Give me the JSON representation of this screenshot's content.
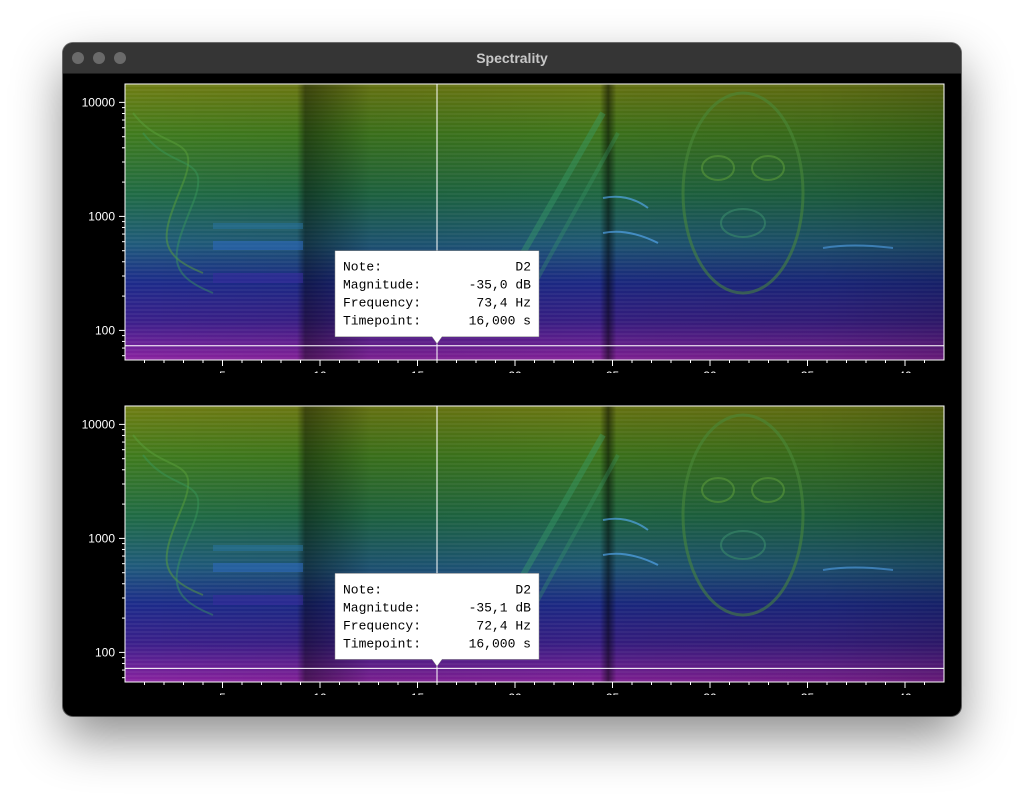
{
  "window": {
    "title": "Spectrality"
  },
  "icons": {
    "close": "close-dot-icon",
    "minimize": "minimize-dot-icon",
    "zoom": "zoom-dot-icon"
  },
  "colors": {
    "high_frequency": "#7a8a16",
    "mid_frequency": "#2a8a4a",
    "upper_low": "#2a6a9a",
    "low_frequency": "#2a2a9a",
    "bass": "#9a2aaa",
    "cursor": "#ffffff"
  },
  "axes": {
    "y_ticks": [
      {
        "value": 10000,
        "label": "10000"
      },
      {
        "value": 1000,
        "label": "1000"
      },
      {
        "value": 100,
        "label": "100"
      }
    ],
    "x_ticks": [
      {
        "value": 5,
        "label": "5"
      },
      {
        "value": 10,
        "label": "10"
      },
      {
        "value": 15,
        "label": "15"
      },
      {
        "value": 20,
        "label": "20"
      },
      {
        "value": 25,
        "label": "25"
      },
      {
        "value": 30,
        "label": "30"
      },
      {
        "value": 35,
        "label": "35"
      },
      {
        "value": 40,
        "label": "40"
      }
    ],
    "x_range": [
      0,
      42
    ],
    "y_range": [
      55,
      14500
    ],
    "y_scale": "log"
  },
  "panels": [
    {
      "cursor_time": 16.0,
      "cursor_frequency": 73.4,
      "tooltip": {
        "note_label": "Note:",
        "note_value": "D2",
        "magnitude_label": "Magnitude:",
        "magnitude_value": "-35,0 dB",
        "frequency_label": "Frequency:",
        "frequency_value": "73,4 Hz",
        "timepoint_label": "Timepoint:",
        "timepoint_value": "16,000 s"
      }
    },
    {
      "cursor_time": 16.0,
      "cursor_frequency": 72.4,
      "tooltip": {
        "note_label": "Note:",
        "note_value": "D2",
        "magnitude_label": "Magnitude:",
        "magnitude_value": "-35,1 dB",
        "frequency_label": "Frequency:",
        "frequency_value": "72,4 Hz",
        "timepoint_label": "Timepoint:",
        "timepoint_value": "16,000 s"
      }
    }
  ]
}
